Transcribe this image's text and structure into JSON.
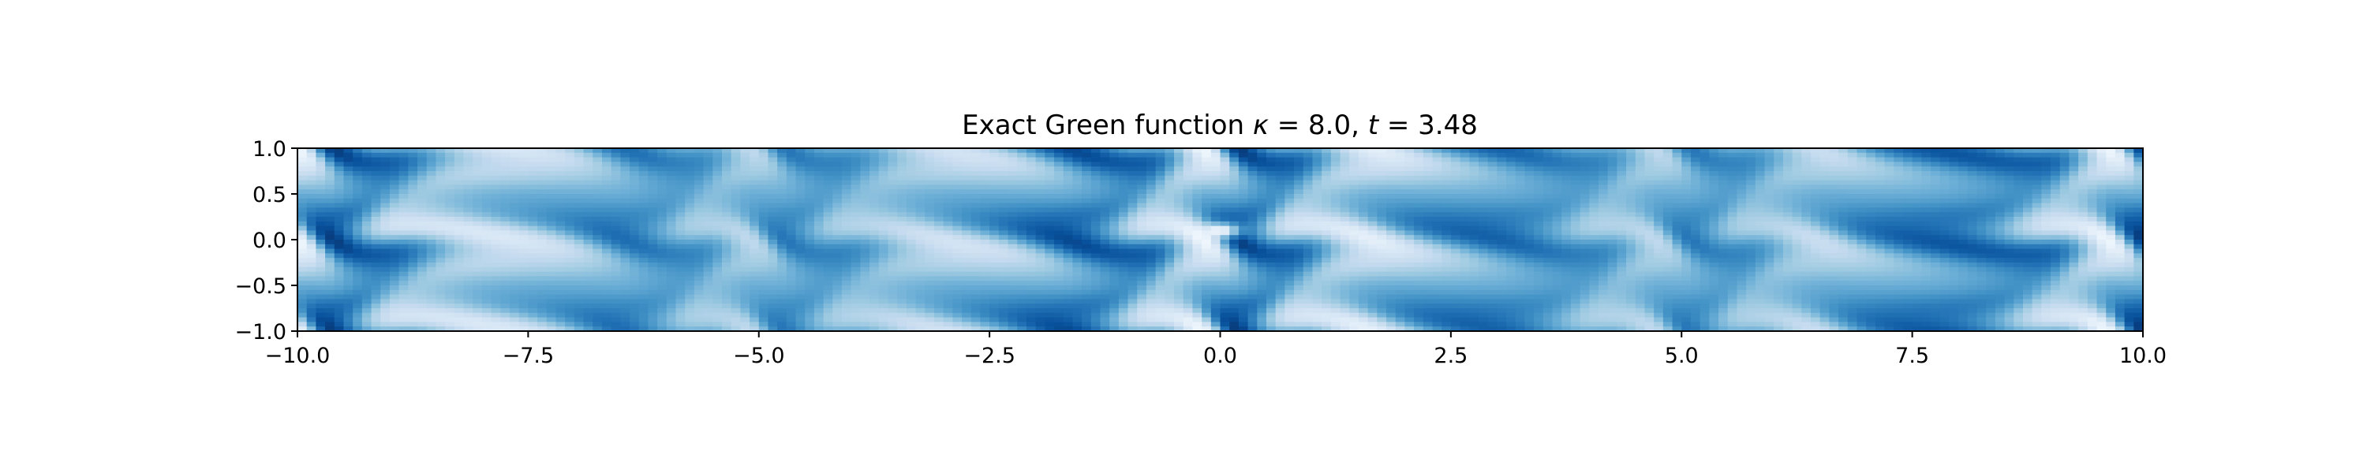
{
  "chart_data": {
    "type": "heatmap",
    "title": "Exact Green function κ = 8.0, t = 3.48",
    "title_parts": {
      "prefix": "Exact Green function ",
      "kappa_symbol": "κ",
      "kappa_value": " = 8.0, ",
      "t_symbol": "t",
      "t_value": " = 3.48"
    },
    "xlabel": "",
    "ylabel": "",
    "xlim": [
      -10.0,
      10.0
    ],
    "ylim": [
      -1.0,
      1.0
    ],
    "x_ticks": [
      -10.0,
      -7.5,
      -5.0,
      -2.5,
      0.0,
      2.5,
      5.0,
      7.5,
      10.0
    ],
    "x_tick_labels": [
      "−10.0",
      "−7.5",
      "−5.0",
      "−2.5",
      "0.0",
      "2.5",
      "5.0",
      "7.5",
      "10.0"
    ],
    "y_ticks": [
      1.0,
      0.5,
      0.0,
      -0.5,
      -1.0
    ],
    "y_tick_labels": [
      "1.0",
      "0.5",
      "0.0",
      "−0.5",
      "−1.0"
    ],
    "colormap": "Blues",
    "colormap_low": "#f7fbff",
    "colormap_high": "#08306b",
    "source_point": [
      0.0,
      0.1
    ],
    "grid": false,
    "legend": "none"
  }
}
